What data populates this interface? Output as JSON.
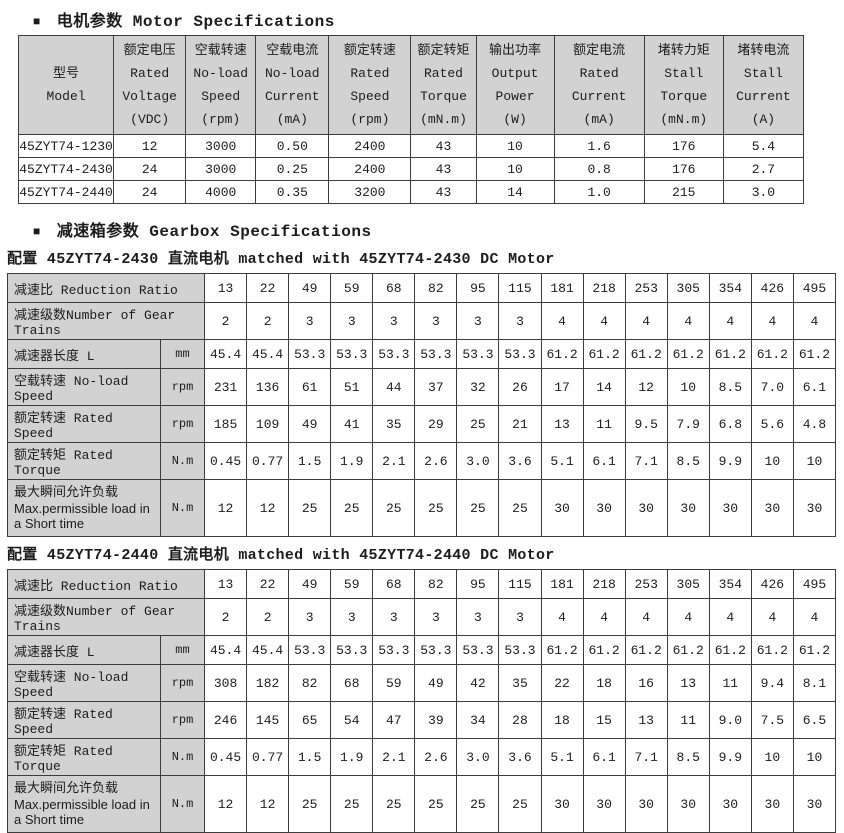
{
  "sections": {
    "motor": {
      "bullet": "■",
      "title": "电机参数 Motor Specifications"
    },
    "gearbox": {
      "bullet": "■",
      "title": "减速箱参数 Gearbox Specifications"
    }
  },
  "motor_table": {
    "columns": [
      {
        "lines": [
          "型号",
          "Model"
        ]
      },
      {
        "lines": [
          "额定电压",
          "Rated",
          "Voltage",
          "(VDC)"
        ]
      },
      {
        "lines": [
          "空载转速",
          "No-load",
          "Speed",
          "(rpm)"
        ]
      },
      {
        "lines": [
          "空载电流",
          "No-load",
          "Current",
          "(mA)"
        ]
      },
      {
        "lines": [
          "额定转速",
          "Rated",
          "Speed",
          "(rpm)"
        ]
      },
      {
        "lines": [
          "额定转矩",
          "Rated",
          "Torque",
          "(mN.m)"
        ]
      },
      {
        "lines": [
          "输出功率",
          "Output",
          "Power",
          "(W)"
        ]
      },
      {
        "lines": [
          "额定电流",
          "Rated",
          "Current",
          "(mA)"
        ]
      },
      {
        "lines": [
          "堵转力矩",
          "Stall",
          "Torque",
          "(mN.m)"
        ]
      },
      {
        "lines": [
          "堵转电流",
          "Stall",
          "Current",
          "(A)"
        ]
      }
    ],
    "rows": [
      [
        "45ZYT74-1230",
        "12",
        "3000",
        "0.50",
        "2400",
        "43",
        "10",
        "1.6",
        "176",
        "5.4"
      ],
      [
        "45ZYT74-2430",
        "24",
        "3000",
        "0.25",
        "2400",
        "43",
        "10",
        "0.8",
        "176",
        "2.7"
      ],
      [
        "45ZYT74-2440",
        "24",
        "4000",
        "0.35",
        "3200",
        "43",
        "14",
        "1.0",
        "215",
        "3.0"
      ]
    ]
  },
  "gearbox_tables": [
    {
      "caption": "配置 45ZYT74-2430 直流电机 matched with 45ZYT74-2430 DC Motor",
      "rows": [
        {
          "label": "减速比 Reduction Ratio",
          "unit": null,
          "values": [
            "13",
            "22",
            "49",
            "59",
            "68",
            "82",
            "95",
            "115",
            "181",
            "218",
            "253",
            "305",
            "354",
            "426",
            "495"
          ]
        },
        {
          "label": "减速级数Number of Gear Trains",
          "unit": null,
          "values": [
            "2",
            "2",
            "3",
            "3",
            "3",
            "3",
            "3",
            "3",
            "4",
            "4",
            "4",
            "4",
            "4",
            "4",
            "4"
          ]
        },
        {
          "label": "减速器长度 L",
          "unit": "mm",
          "values": [
            "45.4",
            "45.4",
            "53.3",
            "53.3",
            "53.3",
            "53.3",
            "53.3",
            "53.3",
            "61.2",
            "61.2",
            "61.2",
            "61.2",
            "61.2",
            "61.2",
            "61.2"
          ]
        },
        {
          "label": "空载转速 No-load Speed",
          "unit": "rpm",
          "values": [
            "231",
            "136",
            "61",
            "51",
            "44",
            "37",
            "32",
            "26",
            "17",
            "14",
            "12",
            "10",
            "8.5",
            "7.0",
            "6.1"
          ]
        },
        {
          "label": "额定转速 Rated Speed",
          "unit": "rpm",
          "values": [
            "185",
            "109",
            "49",
            "41",
            "35",
            "29",
            "25",
            "21",
            "13",
            "11",
            "9.5",
            "7.9",
            "6.8",
            "5.6",
            "4.8"
          ]
        },
        {
          "label": "额定转矩 Rated Torque",
          "unit": "N.m",
          "values": [
            "0.45",
            "0.77",
            "1.5",
            "1.9",
            "2.1",
            "2.6",
            "3.0",
            "3.6",
            "5.1",
            "6.1",
            "7.1",
            "8.5",
            "9.9",
            "10",
            "10"
          ]
        },
        {
          "label": "最大瞬间允许负载",
          "label2": "Max.permissible load in a Short time",
          "unit": "N.m",
          "values": [
            "12",
            "12",
            "25",
            "25",
            "25",
            "25",
            "25",
            "25",
            "30",
            "30",
            "30",
            "30",
            "30",
            "30",
            "30"
          ]
        }
      ]
    },
    {
      "caption": "配置 45ZYT74-2440 直流电机 matched with 45ZYT74-2440 DC Motor",
      "rows": [
        {
          "label": "减速比 Reduction Ratio",
          "unit": null,
          "values": [
            "13",
            "22",
            "49",
            "59",
            "68",
            "82",
            "95",
            "115",
            "181",
            "218",
            "253",
            "305",
            "354",
            "426",
            "495"
          ]
        },
        {
          "label": "减速级数Number of Gear Trains",
          "unit": null,
          "values": [
            "2",
            "2",
            "3",
            "3",
            "3",
            "3",
            "3",
            "3",
            "4",
            "4",
            "4",
            "4",
            "4",
            "4",
            "4"
          ]
        },
        {
          "label": "减速器长度 L",
          "unit": "mm",
          "values": [
            "45.4",
            "45.4",
            "53.3",
            "53.3",
            "53.3",
            "53.3",
            "53.3",
            "53.3",
            "61.2",
            "61.2",
            "61.2",
            "61.2",
            "61.2",
            "61.2",
            "61.2"
          ]
        },
        {
          "label": "空载转速 No-load Speed",
          "unit": "rpm",
          "values": [
            "308",
            "182",
            "82",
            "68",
            "59",
            "49",
            "42",
            "35",
            "22",
            "18",
            "16",
            "13",
            "11",
            "9.4",
            "8.1"
          ]
        },
        {
          "label": "额定转速 Rated Speed",
          "unit": "rpm",
          "values": [
            "246",
            "145",
            "65",
            "54",
            "47",
            "39",
            "34",
            "28",
            "18",
            "15",
            "13",
            "11",
            "9.0",
            "7.5",
            "6.5"
          ]
        },
        {
          "label": "额定转矩 Rated Torque",
          "unit": "N.m",
          "values": [
            "0.45",
            "0.77",
            "1.5",
            "1.9",
            "2.1",
            "2.6",
            "3.0",
            "3.6",
            "5.1",
            "6.1",
            "7.1",
            "8.5",
            "9.9",
            "10",
            "10"
          ]
        },
        {
          "label": "最大瞬间允许负载",
          "label2": "Max.permissible load in a Short time",
          "unit": "N.m",
          "values": [
            "12",
            "12",
            "25",
            "25",
            "25",
            "25",
            "25",
            "25",
            "30",
            "30",
            "30",
            "30",
            "30",
            "30",
            "30"
          ]
        }
      ]
    }
  ]
}
